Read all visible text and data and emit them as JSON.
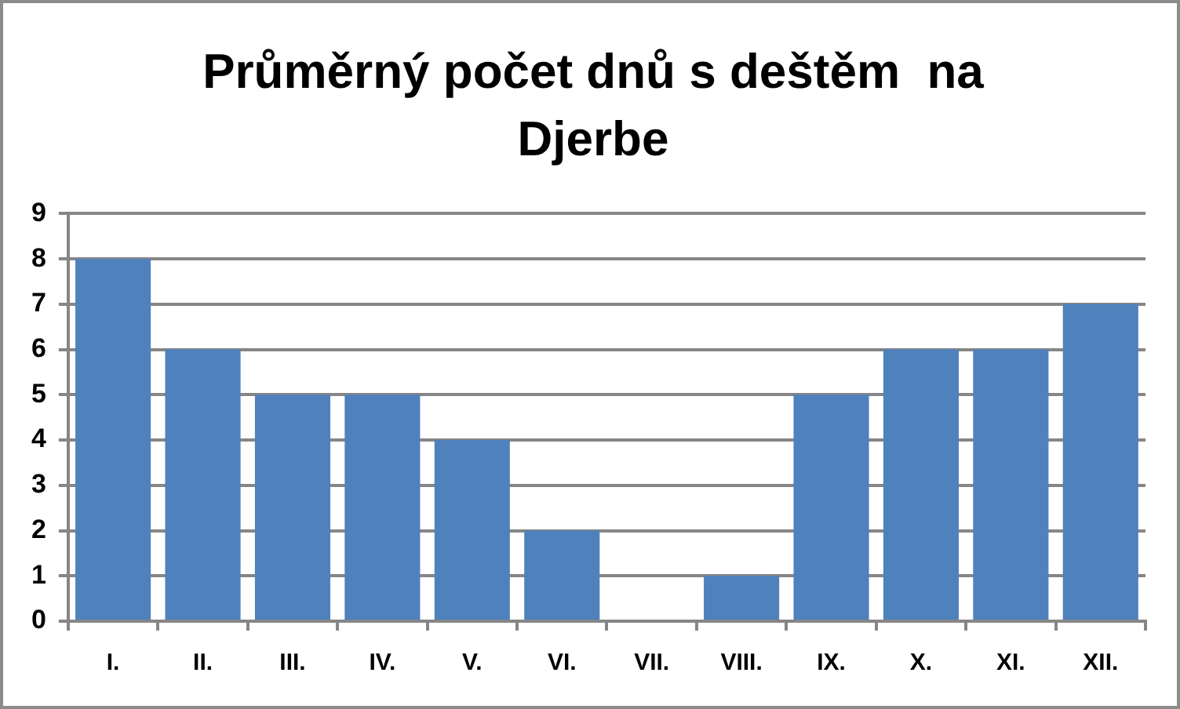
{
  "chart_data": {
    "type": "bar",
    "title": "Průměrný počet dnů s deštěm  na Djerbe",
    "categories": [
      "I.",
      "II.",
      "III.",
      "IV.",
      "V.",
      "VI.",
      "VII.",
      "VIII.",
      "IX.",
      "X.",
      "XI.",
      "XII."
    ],
    "values": [
      8,
      6,
      5,
      5,
      4,
      2,
      0,
      1,
      5,
      6,
      6,
      7
    ],
    "color": "#4f81bd",
    "ylim": [
      0,
      9
    ],
    "yticks": [
      0,
      1,
      2,
      3,
      4,
      5,
      6,
      7,
      8,
      9
    ],
    "grid": "y"
  }
}
